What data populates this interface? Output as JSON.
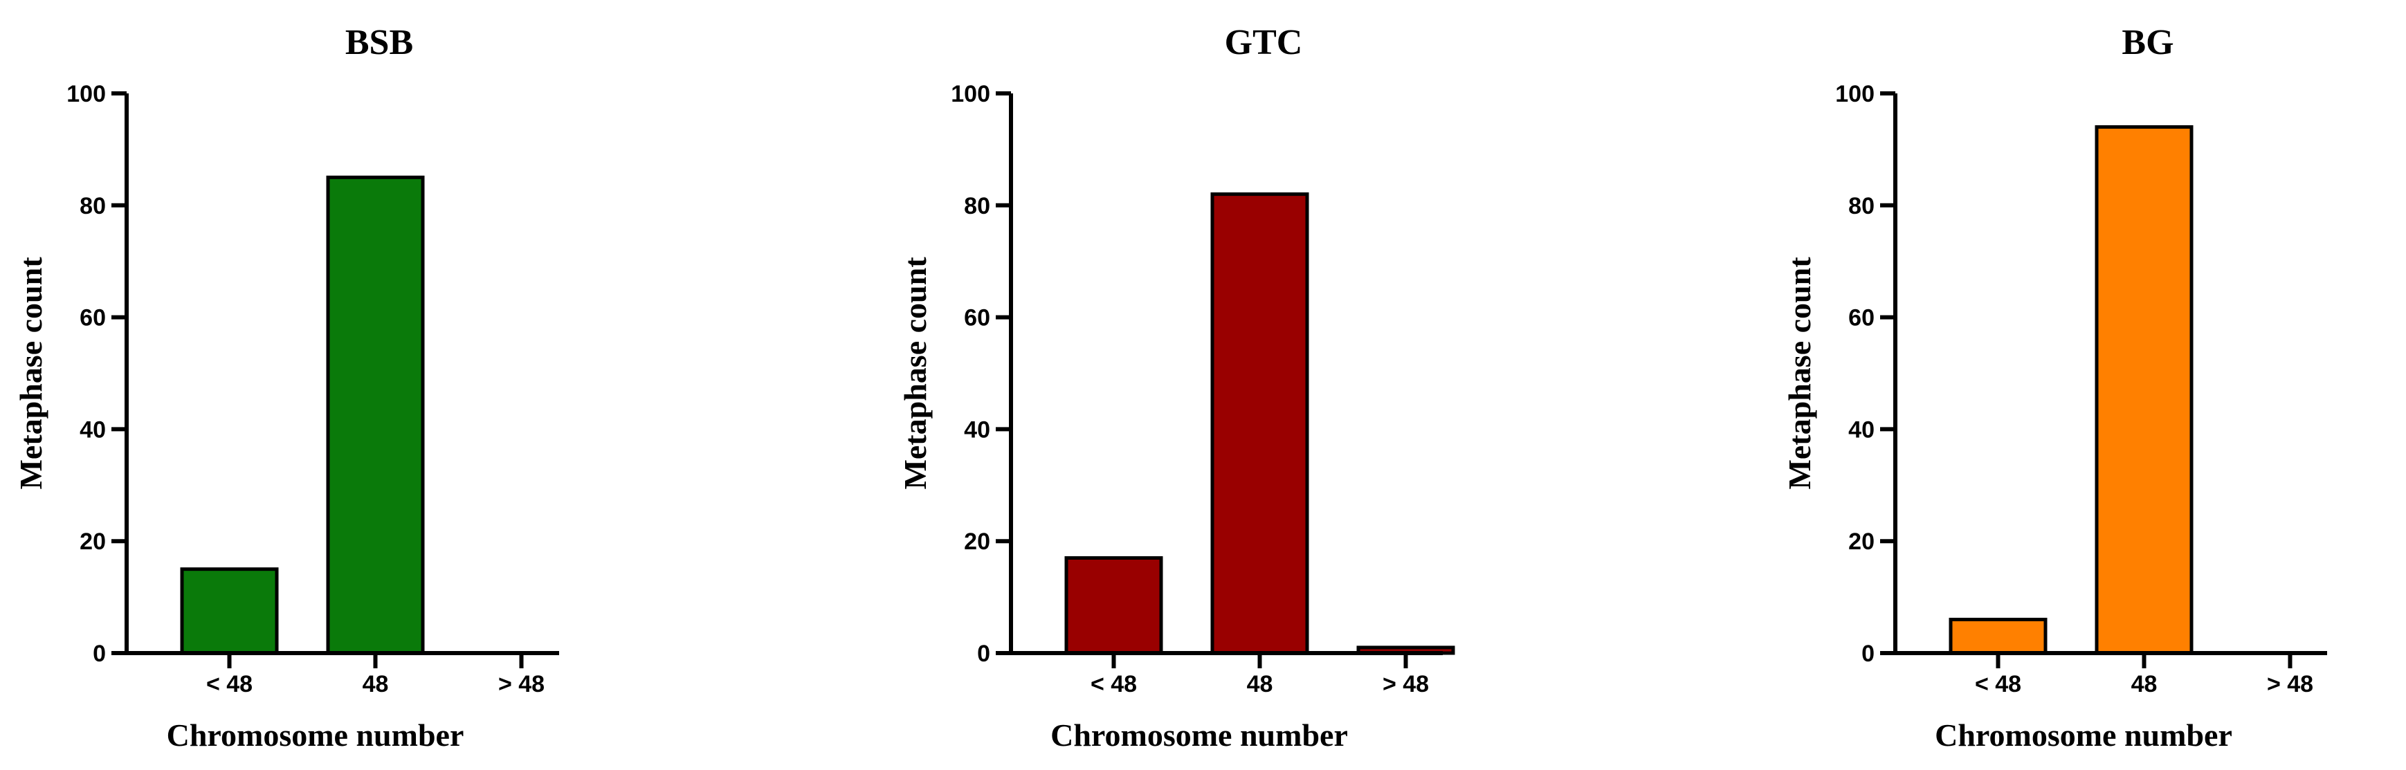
{
  "chart_data": [
    {
      "type": "bar",
      "title": "BSB",
      "xlabel": "Chromosome number",
      "ylabel": "Metaphase count",
      "categories": [
        "< 48",
        "48",
        "> 48"
      ],
      "values": [
        15,
        85,
        0
      ],
      "ylim": [
        0,
        100
      ],
      "yticks": [
        0,
        20,
        40,
        60,
        80,
        100
      ],
      "color": "#0a7a0a",
      "grid": false,
      "legend": "none"
    },
    {
      "type": "bar",
      "title": "GTC",
      "xlabel": "Chromosome number",
      "ylabel": "Metaphase count",
      "categories": [
        "< 48",
        "48",
        "> 48"
      ],
      "values": [
        17,
        82,
        1
      ],
      "ylim": [
        0,
        100
      ],
      "yticks": [
        0,
        20,
        40,
        60,
        80,
        100
      ],
      "color": "#990000",
      "grid": false,
      "legend": "none"
    },
    {
      "type": "bar",
      "title": "BG",
      "xlabel": "Chromosome number",
      "ylabel": "Metaphase count",
      "categories": [
        "< 48",
        "48",
        "> 48"
      ],
      "values": [
        6,
        94,
        0
      ],
      "ylim": [
        0,
        100
      ],
      "yticks": [
        0,
        20,
        40,
        60,
        80,
        100
      ],
      "color": "#ff8000",
      "grid": false,
      "legend": "none"
    }
  ]
}
